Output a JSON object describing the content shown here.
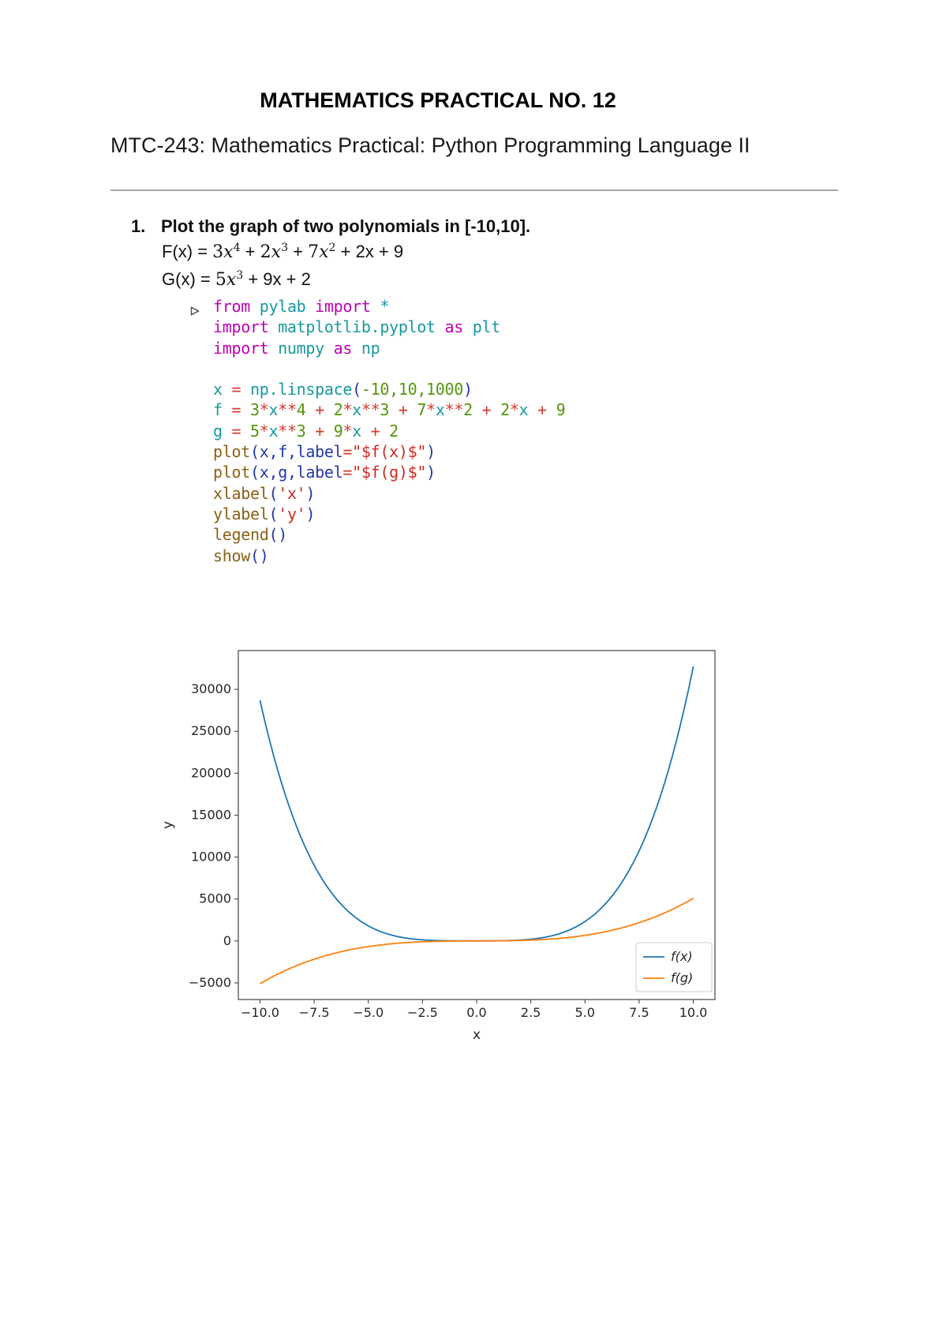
{
  "page": {
    "title": "MATHEMATICS PRACTICAL NO. 12",
    "subtitle": "MTC-243: Mathematics Practical: Python Programming Language II"
  },
  "problem": {
    "number": "1.",
    "statement": "Plot the graph of two polynomials in [-10,10].",
    "formulas": [
      {
        "id": "formula-f",
        "tokens": [
          {
            "t": "F(x) = "
          },
          {
            "t": "3",
            "s": "m"
          },
          {
            "t": "x",
            "s": "mi"
          },
          {
            "t": "4",
            "s": "msup"
          },
          {
            "t": " + "
          },
          {
            "t": "2",
            "s": "m"
          },
          {
            "t": "x",
            "s": "mi"
          },
          {
            "t": "3",
            "s": "msup"
          },
          {
            "t": " + "
          },
          {
            "t": "7",
            "s": "m"
          },
          {
            "t": "x",
            "s": "mi"
          },
          {
            "t": "2",
            "s": "msup"
          },
          {
            "t": " + 2x + 9"
          }
        ]
      },
      {
        "id": "formula-g",
        "tokens": [
          {
            "t": "G(x) = "
          },
          {
            "t": "5",
            "s": "m"
          },
          {
            "t": "x",
            "s": "mi"
          },
          {
            "t": "3",
            "s": "msup"
          },
          {
            "t": " + 9x + 2"
          }
        ]
      }
    ]
  },
  "code": {
    "colors": {
      "kw": "#bf00b5",
      "id": "#17999e",
      "num": "#55950a",
      "op": "#d43c30",
      "fn": "#8a6116",
      "pun": "#2438a8",
      "arg": "#2438a8",
      "str": "#cf2b22"
    },
    "lines": [
      [
        {
          "t": "from ",
          "c": "kw"
        },
        {
          "t": "pylab ",
          "c": "id"
        },
        {
          "t": "import ",
          "c": "kw"
        },
        {
          "t": "*",
          "c": "id"
        }
      ],
      [
        {
          "t": "import ",
          "c": "kw"
        },
        {
          "t": "matplotlib.pyplot ",
          "c": "id"
        },
        {
          "t": "as ",
          "c": "kw"
        },
        {
          "t": "plt",
          "c": "id"
        }
      ],
      [
        {
          "t": "import ",
          "c": "kw"
        },
        {
          "t": "numpy ",
          "c": "id"
        },
        {
          "t": "as ",
          "c": "kw"
        },
        {
          "t": "np",
          "c": "id"
        }
      ],
      [],
      [
        {
          "t": "x ",
          "c": "id"
        },
        {
          "t": "= ",
          "c": "op"
        },
        {
          "t": "np.linspace",
          "c": "id"
        },
        {
          "t": "(",
          "c": "pun"
        },
        {
          "t": "-10,10,1000",
          "c": "num"
        },
        {
          "t": ")",
          "c": "pun"
        }
      ],
      [
        {
          "t": "f ",
          "c": "id"
        },
        {
          "t": "= ",
          "c": "op"
        },
        {
          "t": "3",
          "c": "num"
        },
        {
          "t": "*",
          "c": "op"
        },
        {
          "t": "x",
          "c": "id"
        },
        {
          "t": "**",
          "c": "op"
        },
        {
          "t": "4",
          "c": "num"
        },
        {
          "t": " + ",
          "c": "op"
        },
        {
          "t": "2",
          "c": "num"
        },
        {
          "t": "*",
          "c": "op"
        },
        {
          "t": "x",
          "c": "id"
        },
        {
          "t": "**",
          "c": "op"
        },
        {
          "t": "3",
          "c": "num"
        },
        {
          "t": " + ",
          "c": "op"
        },
        {
          "t": "7",
          "c": "num"
        },
        {
          "t": "*",
          "c": "op"
        },
        {
          "t": "x",
          "c": "id"
        },
        {
          "t": "**",
          "c": "op"
        },
        {
          "t": "2",
          "c": "num"
        },
        {
          "t": " + ",
          "c": "op"
        },
        {
          "t": "2",
          "c": "num"
        },
        {
          "t": "*",
          "c": "op"
        },
        {
          "t": "x",
          "c": "id"
        },
        {
          "t": " + ",
          "c": "op"
        },
        {
          "t": "9",
          "c": "num"
        }
      ],
      [
        {
          "t": "g ",
          "c": "id"
        },
        {
          "t": "= ",
          "c": "op"
        },
        {
          "t": "5",
          "c": "num"
        },
        {
          "t": "*",
          "c": "op"
        },
        {
          "t": "x",
          "c": "id"
        },
        {
          "t": "**",
          "c": "op"
        },
        {
          "t": "3",
          "c": "num"
        },
        {
          "t": " + ",
          "c": "op"
        },
        {
          "t": "9",
          "c": "num"
        },
        {
          "t": "*",
          "c": "op"
        },
        {
          "t": "x",
          "c": "id"
        },
        {
          "t": " + ",
          "c": "op"
        },
        {
          "t": "2",
          "c": "num"
        }
      ],
      [
        {
          "t": "plot",
          "c": "fn"
        },
        {
          "t": "(",
          "c": "pun"
        },
        {
          "t": "x,f,label",
          "c": "arg"
        },
        {
          "t": "=",
          "c": "op"
        },
        {
          "t": "\"$f(x)$\"",
          "c": "str"
        },
        {
          "t": ")",
          "c": "pun"
        }
      ],
      [
        {
          "t": "plot",
          "c": "fn"
        },
        {
          "t": "(",
          "c": "pun"
        },
        {
          "t": "x,g,label",
          "c": "arg"
        },
        {
          "t": "=",
          "c": "op"
        },
        {
          "t": "\"$f(g)$\"",
          "c": "str"
        },
        {
          "t": ")",
          "c": "pun"
        }
      ],
      [
        {
          "t": "xlabel",
          "c": "fn"
        },
        {
          "t": "(",
          "c": "pun"
        },
        {
          "t": "'x'",
          "c": "str"
        },
        {
          "t": ")",
          "c": "pun"
        }
      ],
      [
        {
          "t": "ylabel",
          "c": "fn"
        },
        {
          "t": "(",
          "c": "pun"
        },
        {
          "t": "'y'",
          "c": "str"
        },
        {
          "t": ")",
          "c": "pun"
        }
      ],
      [
        {
          "t": "legend",
          "c": "fn"
        },
        {
          "t": "()",
          "c": "pun"
        }
      ],
      [
        {
          "t": "show",
          "c": "fn"
        },
        {
          "t": "()",
          "c": "pun"
        }
      ]
    ]
  },
  "chart_data": {
    "type": "line",
    "title": "",
    "xlabel": "x",
    "ylabel": "y",
    "xlim": [
      -11,
      11
    ],
    "ylim": [
      -6979,
      34620
    ],
    "x_range": [
      -10,
      10
    ],
    "n_samples": 1000,
    "grid": false,
    "x_ticks": [
      -10,
      -7.5,
      -5,
      -2.5,
      0,
      2.5,
      5,
      7.5,
      10
    ],
    "x_tick_labels": [
      "−10.0",
      "−7.5",
      "−5.0",
      "−2.5",
      "0.0",
      "2.5",
      "5.0",
      "7.5",
      "10.0"
    ],
    "y_ticks": [
      -5000,
      0,
      5000,
      10000,
      15000,
      20000,
      25000,
      30000
    ],
    "y_tick_labels": [
      "−5000",
      "0",
      "5000",
      "10000",
      "15000",
      "20000",
      "25000",
      "30000"
    ],
    "series": [
      {
        "name": "f(x)",
        "color": "#1f77b4",
        "coeffs": [
          3,
          2,
          7,
          2,
          9
        ],
        "expression": "3x^4 + 2x^3 + 7x^2 + 2x + 9"
      },
      {
        "name": "f(g)",
        "color": "#ff7f0e",
        "coeffs": [
          5,
          0,
          9,
          2
        ],
        "expression": "5x^3 + 9x + 2"
      }
    ],
    "legend_position": "lower right"
  }
}
